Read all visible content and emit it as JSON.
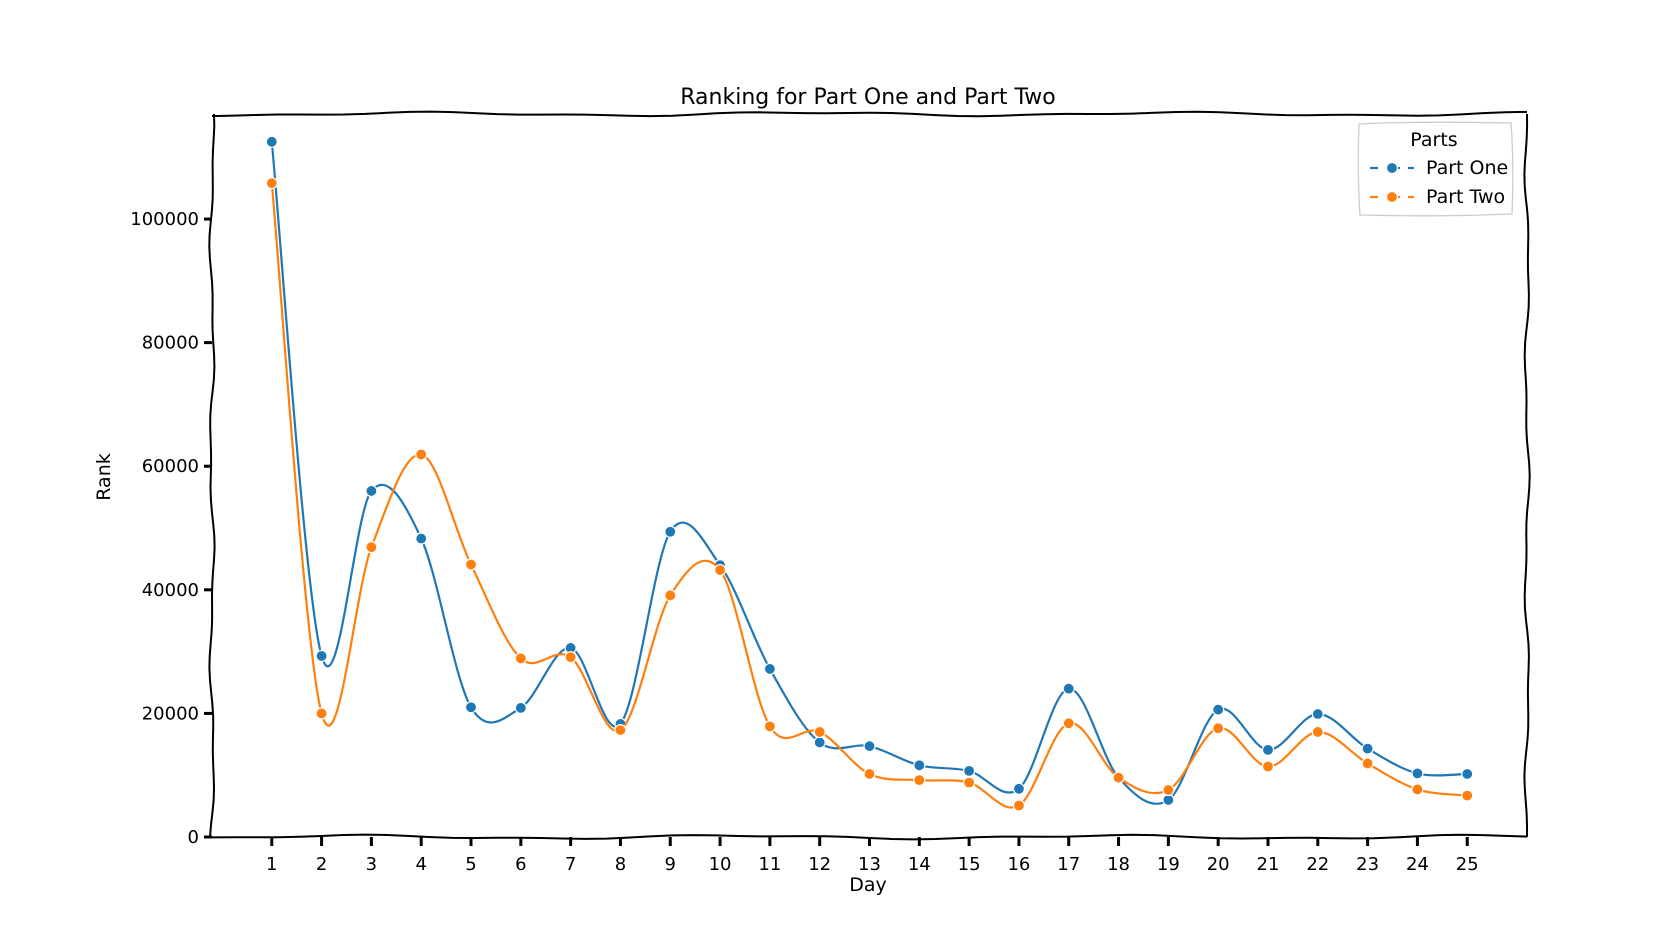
{
  "chart_data": {
    "type": "line",
    "title": "Ranking for Part One and Part Two",
    "xlabel": "Day",
    "ylabel": "Rank",
    "x": [
      1,
      2,
      3,
      4,
      5,
      6,
      7,
      8,
      9,
      10,
      11,
      12,
      13,
      14,
      15,
      16,
      17,
      18,
      19,
      20,
      21,
      22,
      23,
      24,
      25
    ],
    "xlim": [
      -0.2,
      26.2
    ],
    "ylim": [
      0,
      117000
    ],
    "yticks": [
      0,
      20000,
      40000,
      60000,
      80000,
      100000
    ],
    "grid": false,
    "legend": {
      "title": "Parts",
      "placement": "top-right"
    },
    "series": [
      {
        "name": "Part One",
        "color": "#1f77b4",
        "values": [
          112500,
          29300,
          56000,
          48300,
          21000,
          20900,
          30600,
          18300,
          49400,
          44000,
          27200,
          15300,
          14700,
          11600,
          10700,
          7800,
          24000,
          9600,
          6000,
          20600,
          14100,
          19900,
          14300,
          10300,
          10200
        ]
      },
      {
        "name": "Part Two",
        "color": "#ff7f0e",
        "values": [
          105800,
          20000,
          46900,
          61900,
          44100,
          28900,
          29100,
          17300,
          39100,
          43200,
          17900,
          17000,
          10200,
          9200,
          8800,
          5100,
          18400,
          9600,
          7600,
          17600,
          11400,
          17000,
          11900,
          7700,
          6700
        ]
      }
    ]
  }
}
